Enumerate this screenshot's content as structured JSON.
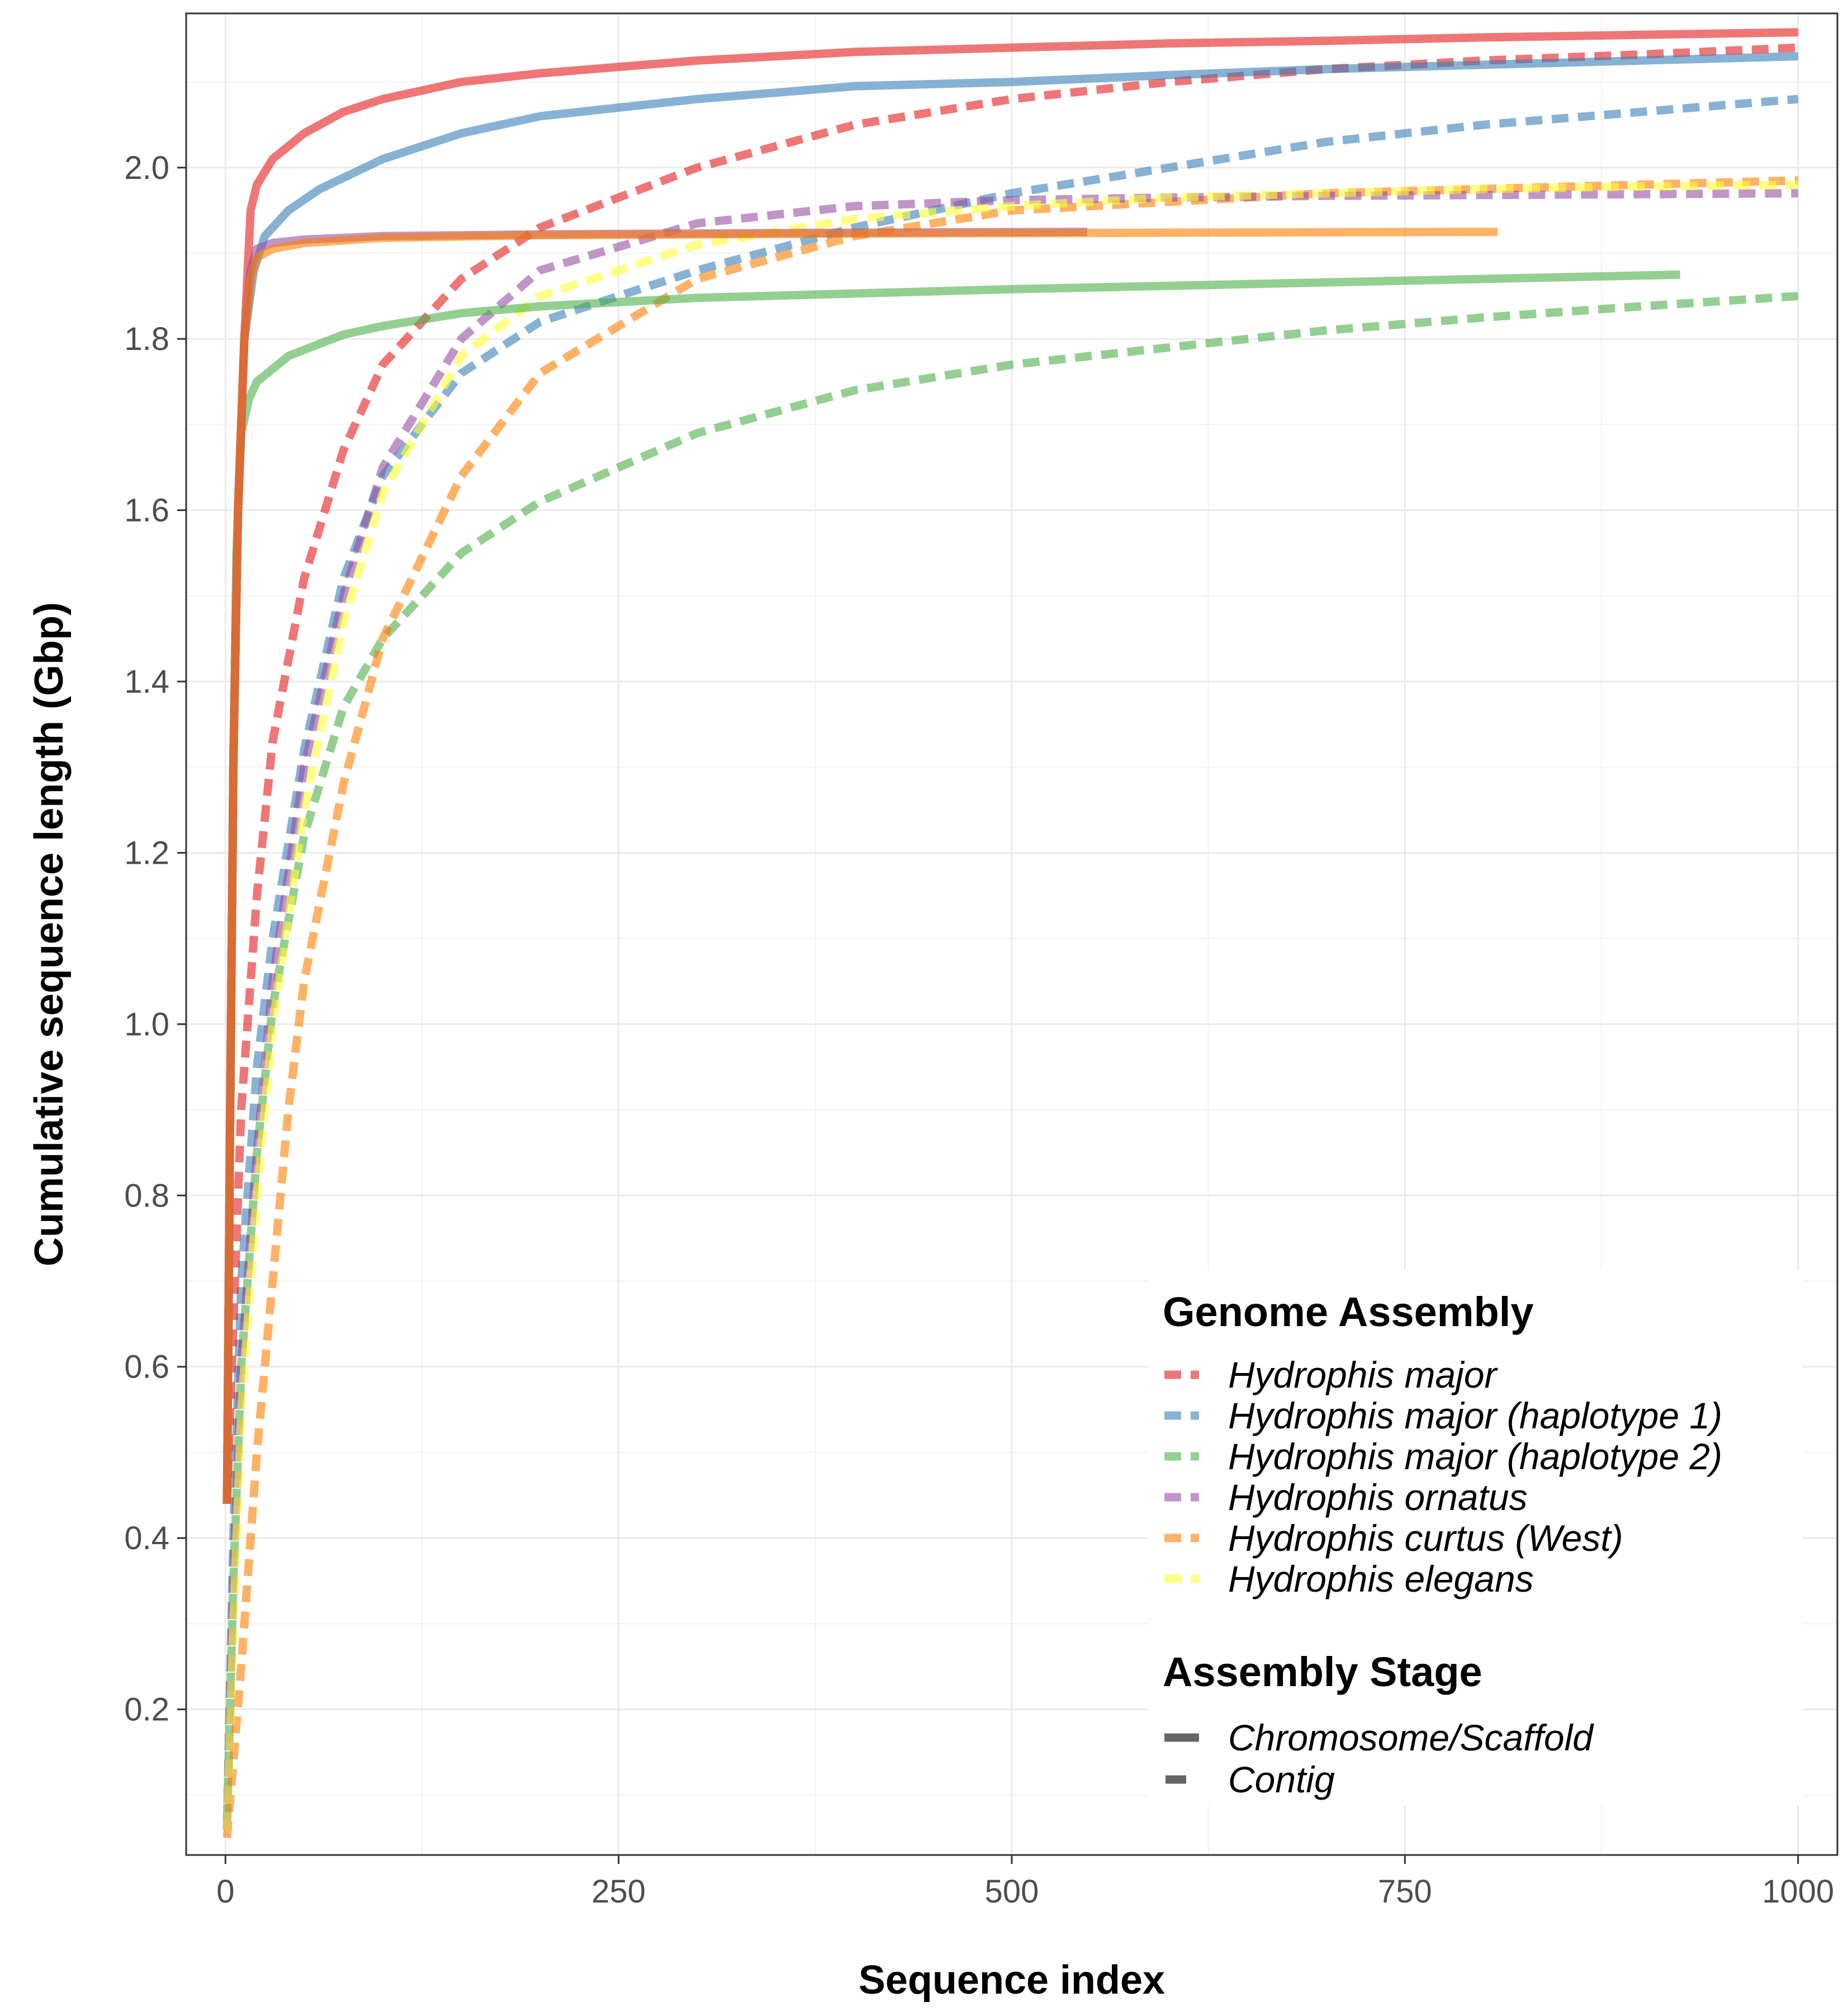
{
  "chart_data": {
    "type": "line",
    "title": "",
    "xlabel": "Sequence index",
    "ylabel": "Cumulative sequence length (Gbp)",
    "xlim": [
      -25,
      1025
    ],
    "ylim": [
      0.03,
      2.18
    ],
    "x_ticks": [
      0,
      250,
      500,
      750,
      1000
    ],
    "x_tick_labels": [
      "0",
      "250",
      "500",
      "750",
      "1000"
    ],
    "y_ticks": [
      0.2,
      0.4,
      0.6,
      0.8,
      1.0,
      1.2,
      1.4,
      1.6,
      1.8,
      2.0
    ],
    "y_tick_labels": [
      "0.2",
      "0.4",
      "0.6",
      "0.8",
      "1.0",
      "1.2",
      "1.4",
      "1.6",
      "1.8",
      "2.0"
    ],
    "grid": true,
    "legend_position": "bottom-right",
    "legends": {
      "assembly": {
        "title": "Genome Assembly",
        "items": [
          {
            "label": "Hydrophis major",
            "color": "#E41A1C"
          },
          {
            "label": "Hydrophis major (haplotype 1)",
            "color": "#377EB8"
          },
          {
            "label": "Hydrophis major (haplotype 2)",
            "color": "#4DAF4A"
          },
          {
            "label": "Hydrophis ornatus",
            "color": "#984EA3"
          },
          {
            "label": "Hydrophis curtus (West)",
            "color": "#FF7F00"
          },
          {
            "label": "Hydrophis elegans",
            "color": "#FFFF33"
          }
        ]
      },
      "stage": {
        "title": "Assembly Stage",
        "items": [
          {
            "label": "Chromosome/Scaffold",
            "style": "solid",
            "color": "#666666"
          },
          {
            "label": "Contig",
            "style": "dashed",
            "color": "#666666"
          }
        ]
      }
    },
    "series": [
      {
        "name": "Hydrophis major (haplotype 2)",
        "stage": "Contig",
        "color": "#4DAF4A",
        "dashed": true,
        "points": [
          [
            1,
            0.07
          ],
          [
            5,
            0.35
          ],
          [
            10,
            0.6
          ],
          [
            20,
            0.85
          ],
          [
            30,
            1.02
          ],
          [
            50,
            1.22
          ],
          [
            75,
            1.37
          ],
          [
            100,
            1.45
          ],
          [
            150,
            1.55
          ],
          [
            200,
            1.61
          ],
          [
            300,
            1.69
          ],
          [
            400,
            1.74
          ],
          [
            500,
            1.77
          ],
          [
            600,
            1.79
          ],
          [
            700,
            1.81
          ],
          [
            800,
            1.825
          ],
          [
            900,
            1.838
          ],
          [
            1000,
            1.85
          ]
        ]
      },
      {
        "name": "Hydrophis major (haplotype 1)",
        "stage": "Contig",
        "color": "#377EB8",
        "dashed": true,
        "points": [
          [
            1,
            0.06
          ],
          [
            5,
            0.4
          ],
          [
            10,
            0.7
          ],
          [
            20,
            0.95
          ],
          [
            30,
            1.1
          ],
          [
            50,
            1.32
          ],
          [
            75,
            1.52
          ],
          [
            100,
            1.64
          ],
          [
            150,
            1.76
          ],
          [
            200,
            1.82
          ],
          [
            300,
            1.88
          ],
          [
            400,
            1.93
          ],
          [
            500,
            1.97
          ],
          [
            600,
            2.0
          ],
          [
            700,
            2.03
          ],
          [
            800,
            2.05
          ],
          [
            900,
            2.065
          ],
          [
            1000,
            2.08
          ]
        ]
      },
      {
        "name": "Hydrophis curtus (West)",
        "stage": "Contig",
        "color": "#FF7F00",
        "dashed": true,
        "points": [
          [
            1,
            0.05
          ],
          [
            10,
            0.25
          ],
          [
            20,
            0.5
          ],
          [
            30,
            0.7
          ],
          [
            40,
            0.9
          ],
          [
            50,
            1.05
          ],
          [
            75,
            1.28
          ],
          [
            100,
            1.45
          ],
          [
            150,
            1.64
          ],
          [
            200,
            1.76
          ],
          [
            300,
            1.87
          ],
          [
            400,
            1.92
          ],
          [
            500,
            1.95
          ],
          [
            600,
            1.96
          ],
          [
            700,
            1.97
          ],
          [
            800,
            1.975
          ],
          [
            900,
            1.98
          ],
          [
            1000,
            1.985
          ]
        ]
      },
      {
        "name": "Hydrophis ornatus",
        "stage": "Contig",
        "color": "#984EA3",
        "dashed": true,
        "points": [
          [
            1,
            0.06
          ],
          [
            5,
            0.35
          ],
          [
            10,
            0.6
          ],
          [
            20,
            0.85
          ],
          [
            30,
            1.05
          ],
          [
            50,
            1.3
          ],
          [
            75,
            1.5
          ],
          [
            100,
            1.65
          ],
          [
            150,
            1.8
          ],
          [
            200,
            1.88
          ],
          [
            300,
            1.935
          ],
          [
            400,
            1.955
          ],
          [
            500,
            1.962
          ],
          [
            600,
            1.965
          ],
          [
            700,
            1.967
          ],
          [
            800,
            1.968
          ],
          [
            900,
            1.969
          ],
          [
            1000,
            1.97
          ]
        ]
      },
      {
        "name": "Hydrophis elegans",
        "stage": "Contig",
        "color": "#FFFF33",
        "dashed": true,
        "points": [
          [
            1,
            0.06
          ],
          [
            5,
            0.3
          ],
          [
            10,
            0.55
          ],
          [
            20,
            0.8
          ],
          [
            30,
            1.0
          ],
          [
            50,
            1.25
          ],
          [
            75,
            1.47
          ],
          [
            100,
            1.62
          ],
          [
            150,
            1.78
          ],
          [
            200,
            1.85
          ],
          [
            300,
            1.91
          ],
          [
            400,
            1.94
          ],
          [
            500,
            1.955
          ],
          [
            600,
            1.965
          ],
          [
            700,
            1.97
          ],
          [
            800,
            1.975
          ],
          [
            900,
            1.978
          ],
          [
            1000,
            1.98
          ]
        ]
      },
      {
        "name": "Hydrophis major",
        "stage": "Contig",
        "color": "#E41A1C",
        "dashed": true,
        "points": [
          [
            1,
            0.44
          ],
          [
            5,
            0.65
          ],
          [
            10,
            0.9
          ],
          [
            20,
            1.15
          ],
          [
            30,
            1.33
          ],
          [
            50,
            1.52
          ],
          [
            75,
            1.67
          ],
          [
            100,
            1.77
          ],
          [
            150,
            1.87
          ],
          [
            200,
            1.93
          ],
          [
            300,
            2.0
          ],
          [
            400,
            2.05
          ],
          [
            500,
            2.08
          ],
          [
            600,
            2.1
          ],
          [
            700,
            2.115
          ],
          [
            800,
            2.125
          ],
          [
            900,
            2.132
          ],
          [
            1000,
            2.14
          ]
        ]
      },
      {
        "name": "Hydrophis major (haplotype 2)",
        "stage": "Chromosome/Scaffold",
        "color": "#4DAF4A",
        "dashed": false,
        "points": [
          [
            1,
            0.44
          ],
          [
            3,
            0.9
          ],
          [
            5,
            1.3
          ],
          [
            7,
            1.55
          ],
          [
            10,
            1.69
          ],
          [
            15,
            1.73
          ],
          [
            20,
            1.75
          ],
          [
            40,
            1.78
          ],
          [
            75,
            1.805
          ],
          [
            100,
            1.815
          ],
          [
            150,
            1.83
          ],
          [
            200,
            1.838
          ],
          [
            300,
            1.848
          ],
          [
            500,
            1.858
          ],
          [
            700,
            1.866
          ],
          [
            925,
            1.875
          ]
        ]
      },
      {
        "name": "Hydrophis major (haplotype 1)",
        "stage": "Chromosome/Scaffold",
        "color": "#377EB8",
        "dashed": false,
        "points": [
          [
            1,
            0.44
          ],
          [
            3,
            0.9
          ],
          [
            5,
            1.3
          ],
          [
            8,
            1.6
          ],
          [
            12,
            1.8
          ],
          [
            18,
            1.88
          ],
          [
            25,
            1.92
          ],
          [
            40,
            1.95
          ],
          [
            60,
            1.975
          ],
          [
            100,
            2.01
          ],
          [
            150,
            2.04
          ],
          [
            200,
            2.06
          ],
          [
            300,
            2.08
          ],
          [
            400,
            2.095
          ],
          [
            500,
            2.1
          ],
          [
            600,
            2.108
          ],
          [
            700,
            2.115
          ],
          [
            800,
            2.12
          ],
          [
            900,
            2.125
          ],
          [
            1000,
            2.13
          ]
        ]
      },
      {
        "name": "Hydrophis major",
        "stage": "Chromosome/Scaffold",
        "color": "#E41A1C",
        "dashed": false,
        "points": [
          [
            1,
            0.44
          ],
          [
            3,
            0.9
          ],
          [
            5,
            1.3
          ],
          [
            8,
            1.6
          ],
          [
            12,
            1.8
          ],
          [
            16,
            1.95
          ],
          [
            20,
            1.98
          ],
          [
            30,
            2.01
          ],
          [
            50,
            2.04
          ],
          [
            75,
            2.065
          ],
          [
            100,
            2.08
          ],
          [
            150,
            2.1
          ],
          [
            200,
            2.11
          ],
          [
            300,
            2.125
          ],
          [
            400,
            2.135
          ],
          [
            500,
            2.14
          ],
          [
            600,
            2.145
          ],
          [
            700,
            2.148
          ],
          [
            800,
            2.152
          ],
          [
            900,
            2.155
          ],
          [
            1000,
            2.158
          ]
        ]
      },
      {
        "name": "Hydrophis ornatus",
        "stage": "Chromosome/Scaffold",
        "color": "#984EA3",
        "dashed": false,
        "points": [
          [
            1,
            0.44
          ],
          [
            3,
            0.9
          ],
          [
            5,
            1.3
          ],
          [
            8,
            1.6
          ],
          [
            12,
            1.8
          ],
          [
            16,
            1.88
          ],
          [
            20,
            1.905
          ],
          [
            30,
            1.912
          ],
          [
            50,
            1.916
          ],
          [
            100,
            1.92
          ],
          [
            200,
            1.922
          ],
          [
            300,
            1.923
          ],
          [
            400,
            1.924
          ],
          [
            548,
            1.925
          ]
        ]
      },
      {
        "name": "Hydrophis curtus (West)",
        "stage": "Chromosome/Scaffold",
        "color": "#FF7F00",
        "dashed": false,
        "points": [
          [
            1,
            0.44
          ],
          [
            3,
            0.9
          ],
          [
            5,
            1.3
          ],
          [
            8,
            1.6
          ],
          [
            12,
            1.8
          ],
          [
            16,
            1.87
          ],
          [
            20,
            1.895
          ],
          [
            30,
            1.905
          ],
          [
            50,
            1.912
          ],
          [
            100,
            1.918
          ],
          [
            200,
            1.921
          ],
          [
            400,
            1.923
          ],
          [
            600,
            1.924
          ],
          [
            809,
            1.925
          ]
        ]
      }
    ]
  }
}
